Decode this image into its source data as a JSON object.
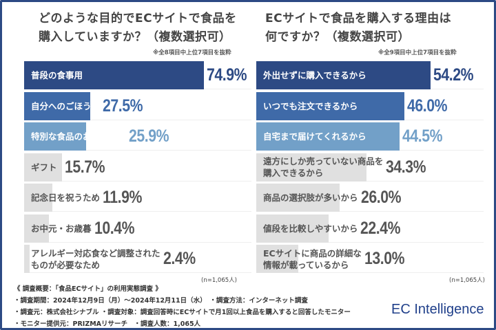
{
  "chart_data": [
    {
      "type": "bar",
      "orientation": "horizontal",
      "title": "どのような目的でECサイトで食品を購入していますか？（複数選択可）",
      "note": "※全8項目中上位7項目を抜粋",
      "sample": "(n=1,065人)",
      "categories": [
        "普段の食事用",
        "自分へのごほうび",
        "特別な食品のお取り寄せ",
        "ギフト",
        "記念日を祝うため",
        "お中元・お歳暮",
        "アレルギー対応食など調整されたものが必要なため"
      ],
      "values": [
        74.9,
        27.5,
        25.9,
        15.7,
        11.9,
        10.4,
        2.4
      ],
      "labels": [
        "74.9%",
        "27.5%",
        "25.9%",
        "15.7%",
        "11.9%",
        "10.4%",
        "2.4%"
      ],
      "colors": [
        "#2d4a84",
        "#3f6aa8",
        "#72a0c8",
        "#e0e0e0",
        "#e0e0e0",
        "#e0e0e0",
        "#e0e0e0"
      ]
    },
    {
      "type": "bar",
      "orientation": "horizontal",
      "title": "ECサイトで食品を購入する理由は何ですか？（複数選択可）",
      "note": "※全9項目中上位7項目を抜粋",
      "sample": "(n=1,065人)",
      "categories": [
        "外出せずに購入できるから",
        "いつでも注文できるから",
        "自宅まで届けてくれるから",
        "遠方にしか売っていない商品を購入できるから",
        "商品の選択肢が多いから",
        "値段を比較しやすいから",
        "ECサイトに商品の詳細な情報が載っているから"
      ],
      "values": [
        54.2,
        46.0,
        44.5,
        34.3,
        26.0,
        22.4,
        13.0
      ],
      "labels": [
        "54.2%",
        "46.0%",
        "44.5%",
        "34.3%",
        "26.0%",
        "22.4%",
        "13.0%"
      ],
      "colors": [
        "#2d4a84",
        "#3f6aa8",
        "#72a0c8",
        "#e0e0e0",
        "#e0e0e0",
        "#e0e0e0",
        "#e0e0e0"
      ]
    }
  ],
  "left": {
    "title1": "どのような目的でECサイトで食品を",
    "title2": "購入していますか？（複数選択可）"
  },
  "right": {
    "title1": "ECサイトで食品を購入する理由は",
    "title2": "何ですか？（複数選択可）"
  },
  "left_labels": [
    "普段の食事用",
    "自分へのごほうび",
    "特別な食品のお取り寄せ",
    "ギフト",
    "記念日を祝うため",
    "お中元・お歳暮",
    "アレルギー対応食など調整された\nものが必要なため"
  ],
  "right_labels": [
    "外出せずに購入できるから",
    "いつでも注文できるから",
    "自宅まで届けてくれるから",
    "遠方にしか売っていない商品を\n購入できるから",
    "商品の選択肢が多いから",
    "値段を比較しやすいから",
    "ECサイトに商品の詳細な\n情報が載っているから"
  ],
  "footer": {
    "line1": "《 調査概要：「食品ECサイト」の利用実態調査 》",
    "line2": "・調査期間：2024年12月9日（月）～2024年12月11日（水）　・調査方法：インターネット調査",
    "line3": "・調査元：株式会社シナブル ・調査対象：調査回答時にECサイトで月1回以上食品を購入すると回答したモニター",
    "line4": "・モニター提供元：PRIZMAリサーチ　・調査人数：1,065人"
  },
  "logo": "EC Intelligence"
}
